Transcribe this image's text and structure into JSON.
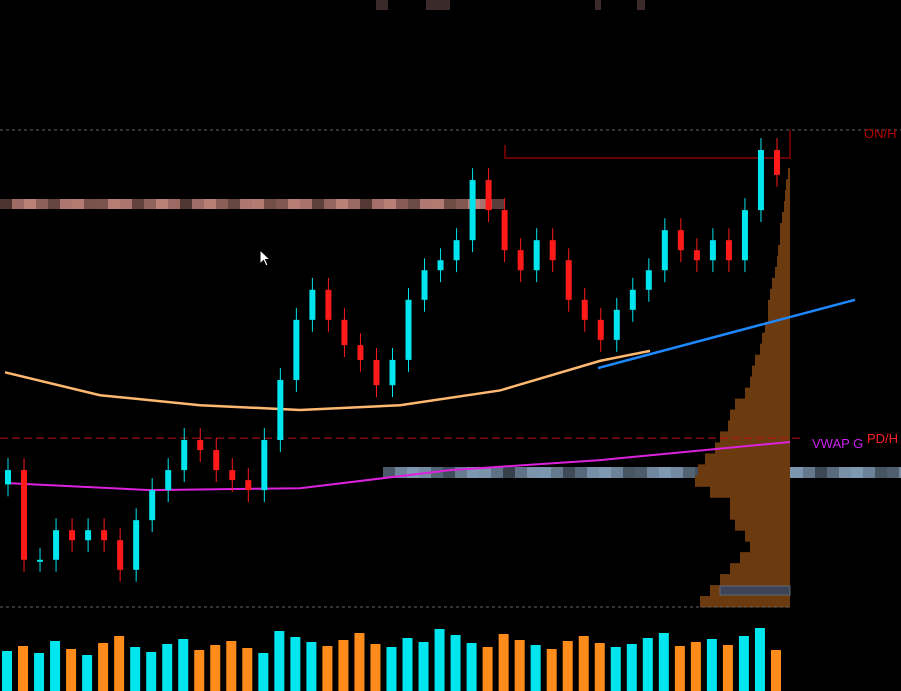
{
  "chart_data": {
    "type": "candlestick",
    "title": "",
    "xlabel": "",
    "ylabel": "",
    "ylim": [
      0,
      100
    ],
    "grid": false,
    "colors": {
      "up": "#00e5ee",
      "down": "#ff1a1a",
      "ma": "#ffb870",
      "vwap": "#dd22dd",
      "trend": "#1e88ff",
      "profile": "#6b3a0e",
      "vol_up": "#00e5ee",
      "vol_down": "#ff8c1a"
    },
    "closes": [
      28.7,
      9.9,
      9.9,
      16.1,
      14.0,
      16.1,
      14.0,
      7.8,
      18.2,
      24.5,
      28.7,
      35.0,
      32.9,
      28.7,
      26.6,
      24.5,
      35.0,
      47.6,
      60.2,
      66.5,
      60.2,
      54.9,
      51.8,
      46.5,
      51.8,
      64.4,
      70.6,
      72.7,
      76.9,
      89.5,
      83.2,
      74.8,
      70.6,
      76.9,
      72.7,
      64.4,
      60.2,
      56.0,
      62.3,
      66.5,
      70.6,
      79.0,
      74.8,
      72.7,
      76.9,
      72.7,
      83.2,
      95.8,
      90.6
    ],
    "volumes": [
      40,
      45,
      38,
      50,
      42,
      36,
      48,
      55,
      44,
      39,
      47,
      52,
      41,
      46,
      50,
      43,
      38,
      60,
      54,
      49,
      45,
      51,
      58,
      47,
      44,
      53,
      49,
      62,
      56,
      48,
      44,
      57,
      51,
      46,
      42,
      50,
      55,
      48,
      44,
      47,
      53,
      58,
      45,
      49,
      52,
      46,
      55,
      63,
      41
    ],
    "moving_average": [
      49.2,
      44.4,
      42.3,
      41.3,
      42.3,
      45.4,
      51.6,
      53.7
    ],
    "vwap": [
      26.0,
      24.5,
      24.9,
      28.7,
      30.8,
      34.6
    ],
    "trendline": [
      50.1,
      64.4
    ],
    "volume_profile": [
      2,
      4,
      5,
      6,
      8,
      10,
      10,
      12,
      13,
      15,
      18,
      20,
      22,
      22,
      25,
      28,
      30,
      35,
      38,
      40,
      45,
      55,
      60,
      62,
      70,
      75,
      85,
      92,
      95,
      80,
      60,
      60,
      55,
      45,
      40,
      50,
      60,
      70,
      80,
      90
    ],
    "levels": [
      {
        "name": "ON/H",
        "value": 100,
        "label": "ON/H",
        "color": "#b00000"
      },
      {
        "name": "PD/H",
        "value": 35.4,
        "label": "PD/H",
        "color": "#ff2020"
      },
      {
        "name": "VWAP",
        "label": "VWAP G",
        "color": "#cc22ee"
      }
    ]
  }
}
